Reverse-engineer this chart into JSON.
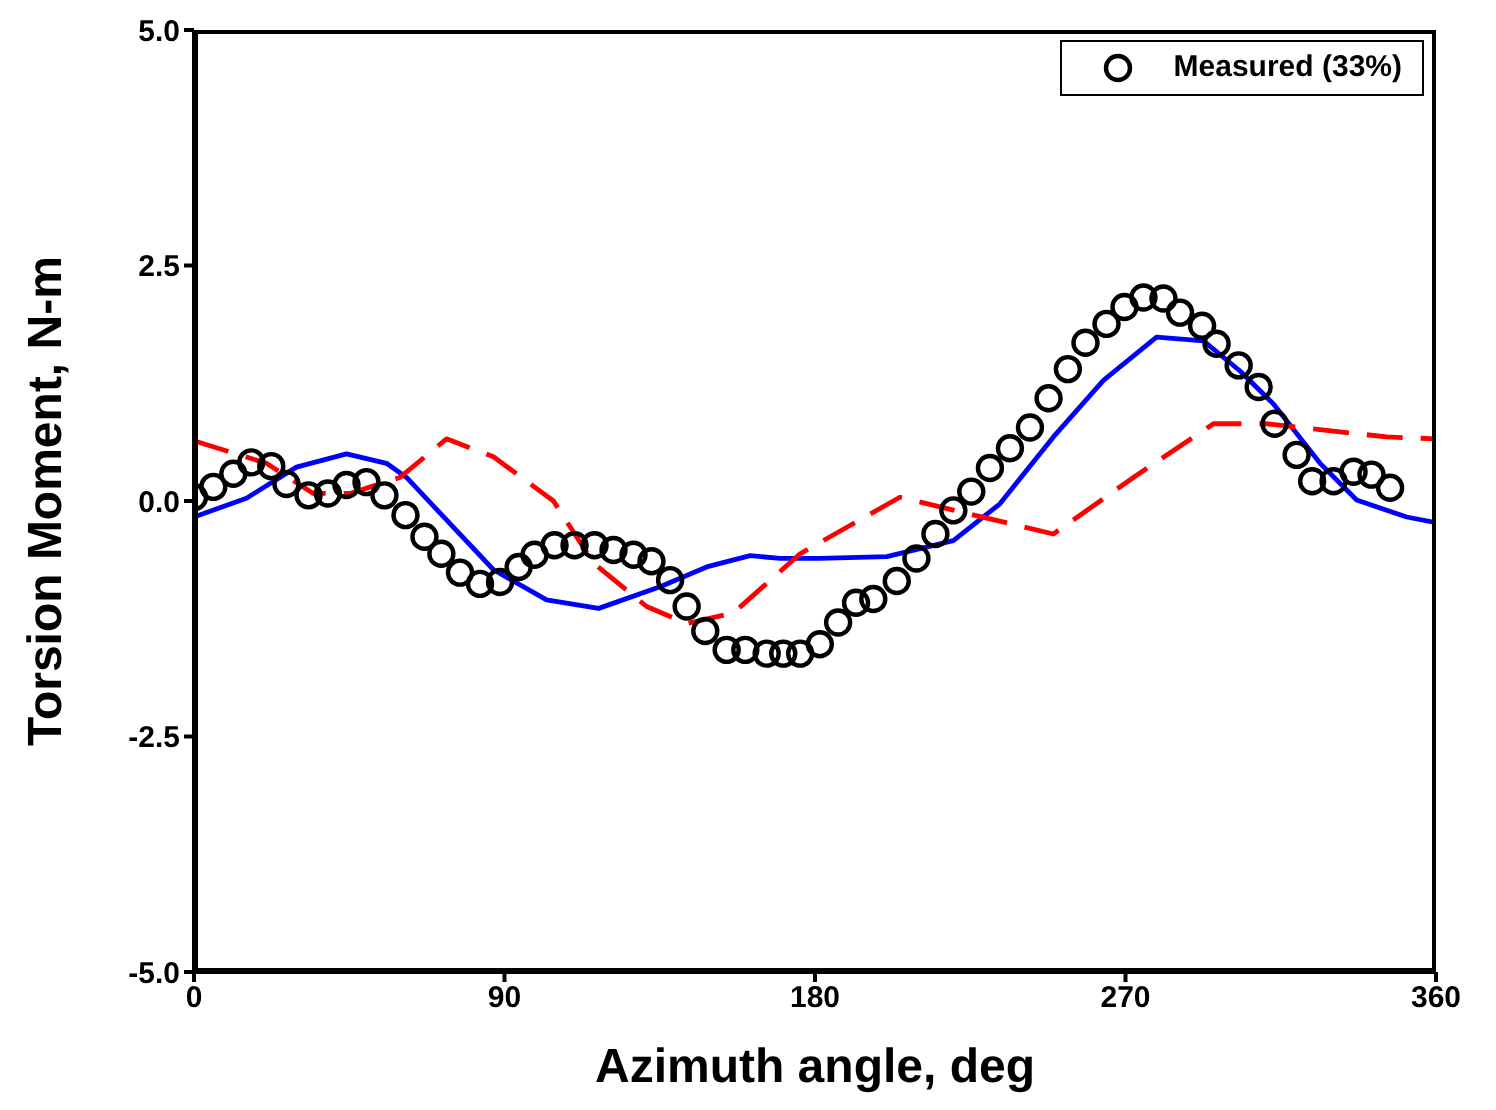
{
  "chart_data": {
    "type": "line",
    "xlabel": "Azimuth angle, deg",
    "ylabel": "Torsion Moment, N-m",
    "xlim": [
      0,
      360
    ],
    "xticks": [
      0,
      90,
      180,
      270,
      360
    ],
    "ylim": [
      -5,
      5
    ],
    "yticks": [
      {
        "value": -5,
        "label": "-5.0"
      },
      {
        "value": -2.5,
        "label": "-2.5"
      },
      {
        "value": 0,
        "label": "0.0"
      },
      {
        "value": 2.5,
        "label": "2.5"
      },
      {
        "value": 5,
        "label": "5.0"
      }
    ],
    "grid": false,
    "legend": "top right",
    "series": [
      {
        "name": "Measured (33%)",
        "type": "scatter",
        "marker": "circle",
        "color": "#000000",
        "x": [
          0,
          5.6,
          11.4,
          16.6,
          22.4,
          26.8,
          33.2,
          38.8,
          44.2,
          50,
          55.2,
          61.3,
          66.8,
          71.7,
          77.1,
          82.9,
          88.7,
          94.1,
          98.7,
          104.5,
          110.3,
          116.1,
          121.6,
          127.4,
          132.6,
          138,
          142.8,
          148.2,
          154.4,
          159.8,
          166,
          170.8,
          175.7,
          181.4,
          186.7,
          191.9,
          196.9,
          203.7,
          209.4,
          214.9,
          220.1,
          225.3,
          230.7,
          236.5,
          242.3,
          247.7,
          253.3,
          258.4,
          264.5,
          269.7,
          275.2,
          281,
          285.8,
          292.2,
          296.4,
          302.8,
          308.6,
          313.2,
          319.6,
          324.1,
          330.3,
          336.1,
          341.3,
          346.7
        ],
        "values": [
          0.04,
          0.15,
          0.29,
          0.41,
          0.37,
          0.18,
          0.06,
          0.08,
          0.17,
          0.2,
          0.06,
          -0.15,
          -0.38,
          -0.56,
          -0.76,
          -0.88,
          -0.86,
          -0.7,
          -0.57,
          -0.47,
          -0.47,
          -0.47,
          -0.52,
          -0.57,
          -0.64,
          -0.84,
          -1.12,
          -1.38,
          -1.58,
          -1.58,
          -1.62,
          -1.62,
          -1.62,
          -1.52,
          -1.29,
          -1.08,
          -1.04,
          -0.85,
          -0.61,
          -0.35,
          -0.1,
          0.1,
          0.35,
          0.56,
          0.78,
          1.09,
          1.4,
          1.68,
          1.88,
          2.06,
          2.16,
          2.15,
          2.0,
          1.86,
          1.67,
          1.44,
          1.21,
          0.82,
          0.49,
          0.21,
          0.21,
          0.31,
          0.28,
          0.14
        ]
      },
      {
        "line_style": "solid",
        "color": "#0000ff",
        "x": [
          0,
          15.2,
          29.7,
          44.2,
          55.8,
          61.6,
          86.8,
          102.2,
          117.3,
          135.1,
          148.6,
          161.2,
          169.9,
          181.4,
          200.8,
          220.1,
          233.6,
          249.1,
          263.6,
          279,
          292.6,
          303.2,
          312.9,
          326.4,
          337,
          351.5,
          360
        ],
        "values": [
          -0.17,
          0.03,
          0.36,
          0.5,
          0.4,
          0.25,
          -0.73,
          -1.05,
          -1.14,
          -0.91,
          -0.7,
          -0.58,
          -0.61,
          -0.61,
          -0.59,
          -0.42,
          -0.03,
          0.68,
          1.28,
          1.74,
          1.7,
          1.38,
          1.03,
          0.4,
          0.01,
          -0.17,
          -0.23
        ]
      },
      {
        "line_style": "dashed",
        "color": "#ff0000",
        "x": [
          0,
          21,
          34.6,
          45.2,
          59.7,
          73.2,
          86.8,
          104.2,
          115.8,
          131.2,
          142.8,
          156.3,
          175.7,
          204.6,
          223.9,
          249.1,
          272.3,
          295.5,
          311,
          345.7,
          360
        ],
        "values": [
          0.64,
          0.4,
          0.08,
          0.08,
          0.25,
          0.66,
          0.47,
          0,
          -0.66,
          -1.12,
          -1.3,
          -1.19,
          -0.56,
          0.04,
          -0.13,
          -0.35,
          0.25,
          0.82,
          0.82,
          0.68,
          0.66
        ]
      }
    ]
  }
}
